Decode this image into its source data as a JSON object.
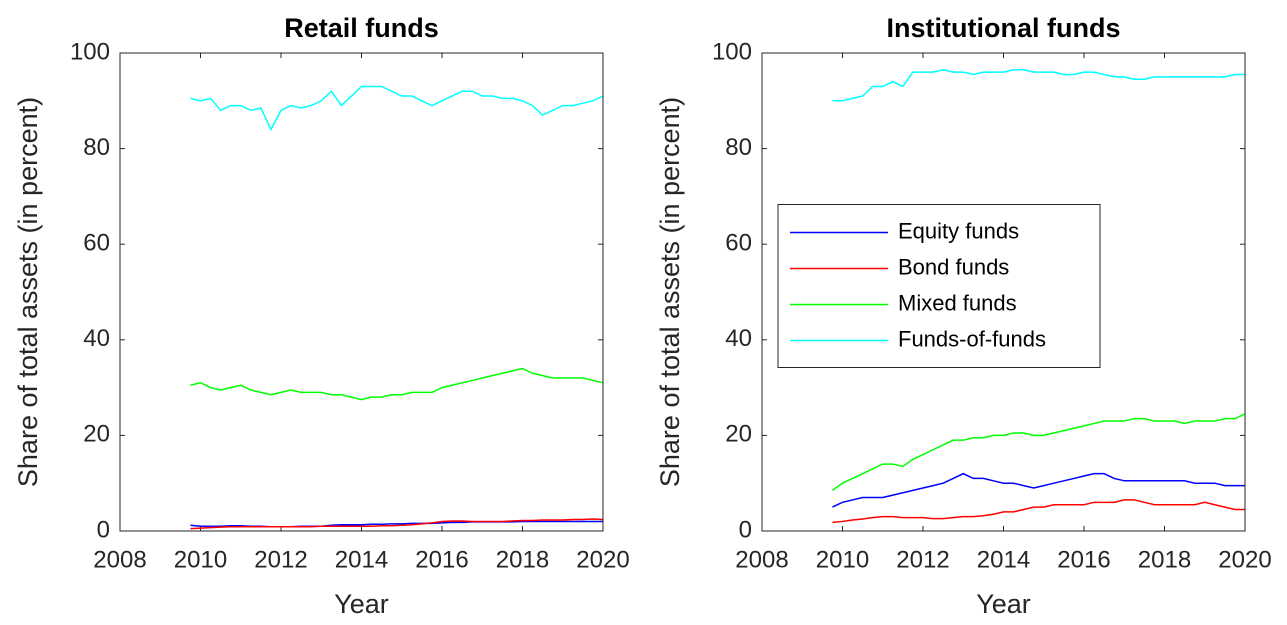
{
  "chart_data": [
    {
      "type": "line",
      "title": "Retail funds",
      "xlabel": "Year",
      "ylabel": "Share of total assets (in percent)",
      "x": [
        2009.75,
        2010,
        2010.25,
        2010.5,
        2010.75,
        2011,
        2011.25,
        2011.5,
        2011.75,
        2012,
        2012.25,
        2012.5,
        2012.75,
        2013,
        2013.25,
        2013.5,
        2013.75,
        2014,
        2014.25,
        2014.5,
        2014.75,
        2015,
        2015.25,
        2015.5,
        2015.75,
        2016,
        2016.25,
        2016.5,
        2016.75,
        2017,
        2017.25,
        2017.5,
        2017.75,
        2018,
        2018.25,
        2018.5,
        2018.75,
        2019,
        2019.25,
        2019.5,
        2019.75,
        2020
      ],
      "series": [
        {
          "color": "#0000ff",
          "values": [
            1.2,
            1,
            1,
            1,
            1.1,
            1.1,
            1,
            1,
            0.9,
            0.9,
            0.9,
            1,
            1,
            1,
            1.2,
            1.3,
            1.3,
            1.3,
            1.4,
            1.4,
            1.5,
            1.5,
            1.6,
            1.6,
            1.6,
            1.7,
            1.8,
            1.8,
            1.9,
            1.9,
            1.9,
            1.9,
            1.9,
            2,
            2,
            2,
            2,
            2,
            2,
            2,
            2,
            2
          ]
        },
        {
          "color": "#ff0000",
          "values": [
            0.5,
            0.6,
            0.7,
            0.8,
            0.9,
            0.9,
            0.9,
            0.9,
            0.9,
            0.9,
            0.9,
            0.9,
            0.9,
            1,
            1,
            1,
            1,
            1,
            1,
            1.1,
            1.1,
            1.2,
            1.3,
            1.5,
            1.7,
            2,
            2.1,
            2.1,
            2,
            2,
            2,
            2,
            2.1,
            2.2,
            2.2,
            2.3,
            2.3,
            2.3,
            2.4,
            2.4,
            2.5,
            2.4
          ]
        },
        {
          "color": "#00ff00",
          "values": [
            30.5,
            31,
            30,
            29.5,
            30,
            30.5,
            29.5,
            29,
            28.5,
            29,
            29.5,
            29,
            29,
            29,
            28.5,
            28.5,
            28,
            27.5,
            28,
            28,
            28.5,
            28.5,
            29,
            29,
            29,
            30,
            30.5,
            31,
            31.5,
            32,
            32.5,
            33,
            33.5,
            34,
            33,
            32.5,
            32,
            32,
            32,
            32,
            31.5,
            31
          ]
        },
        {
          "color": "#00ffff",
          "values": [
            90.5,
            90,
            90.5,
            88,
            89,
            89,
            88,
            88.5,
            84,
            88,
            89,
            88.5,
            89,
            90,
            92,
            89,
            91,
            93,
            93,
            93,
            92,
            91,
            91,
            90,
            89,
            90,
            91,
            92,
            92,
            91,
            91,
            90.5,
            90.5,
            90,
            89,
            87,
            88,
            89,
            89,
            89.5,
            90,
            91
          ]
        }
      ],
      "xlim": [
        2008,
        2020
      ],
      "xticks": [
        2008,
        2010,
        2012,
        2014,
        2016,
        2018,
        2020
      ],
      "ylim": [
        0,
        100
      ],
      "yticks": [
        0,
        20,
        40,
        60,
        80,
        100
      ],
      "grid": false
    },
    {
      "type": "line",
      "title": "Institutional funds",
      "xlabel": "Year",
      "ylabel": "Share of total assets (in percent)",
      "x": [
        2009.75,
        2010,
        2010.25,
        2010.5,
        2010.75,
        2011,
        2011.25,
        2011.5,
        2011.75,
        2012,
        2012.25,
        2012.5,
        2012.75,
        2013,
        2013.25,
        2013.5,
        2013.75,
        2014,
        2014.25,
        2014.5,
        2014.75,
        2015,
        2015.25,
        2015.5,
        2015.75,
        2016,
        2016.25,
        2016.5,
        2016.75,
        2017,
        2017.25,
        2017.5,
        2017.75,
        2018,
        2018.25,
        2018.5,
        2018.75,
        2019,
        2019.25,
        2019.5,
        2019.75,
        2020
      ],
      "series": [
        {
          "name": "Equity funds",
          "color": "#0000ff",
          "values": [
            5,
            6,
            6.5,
            7,
            7,
            7,
            7.5,
            8,
            8.5,
            9,
            9.5,
            10,
            11,
            12,
            11,
            11,
            10.5,
            10,
            10,
            9.5,
            9,
            9.5,
            10,
            10.5,
            11,
            11.5,
            12,
            12,
            11,
            10.5,
            10.5,
            10.5,
            10.5,
            10.5,
            10.5,
            10.5,
            10,
            10,
            10,
            9.5,
            9.5,
            9.5
          ]
        },
        {
          "name": "Bond funds",
          "color": "#ff0000",
          "values": [
            1.8,
            2,
            2.3,
            2.5,
            2.8,
            3,
            3,
            2.8,
            2.8,
            2.8,
            2.6,
            2.6,
            2.8,
            3,
            3,
            3.2,
            3.5,
            4,
            4,
            4.5,
            5,
            5,
            5.5,
            5.5,
            5.5,
            5.5,
            6,
            6,
            6,
            6.5,
            6.5,
            6,
            5.5,
            5.5,
            5.5,
            5.5,
            5.5,
            6,
            5.5,
            5,
            4.5,
            4.5
          ]
        },
        {
          "name": "Mixed funds",
          "color": "#00ff00",
          "values": [
            8.5,
            10,
            11,
            12,
            13,
            14,
            14,
            13.5,
            15,
            16,
            17,
            18,
            19,
            19,
            19.5,
            19.5,
            20,
            20,
            20.5,
            20.5,
            20,
            20,
            20.5,
            21,
            21.5,
            22,
            22.5,
            23,
            23,
            23,
            23.5,
            23.5,
            23,
            23,
            23,
            22.5,
            23,
            23,
            23,
            23.5,
            23.5,
            24.5
          ]
        },
        {
          "name": "Funds-of-funds",
          "color": "#00ffff",
          "values": [
            90,
            90,
            90.5,
            91,
            93,
            93,
            94,
            93,
            96,
            96,
            96,
            96.5,
            96,
            96,
            95.5,
            96,
            96,
            96,
            96.5,
            96.5,
            96,
            96,
            96,
            95.5,
            95.5,
            96,
            96,
            95.5,
            95,
            95,
            94.5,
            94.5,
            95,
            95,
            95,
            95,
            95,
            95,
            95,
            95,
            95.5,
            95.5
          ]
        }
      ],
      "xlim": [
        2008,
        2020
      ],
      "xticks": [
        2008,
        2010,
        2012,
        2014,
        2016,
        2018,
        2020
      ],
      "ylim": [
        0,
        100
      ],
      "yticks": [
        0,
        20,
        40,
        60,
        80,
        100
      ],
      "grid": false,
      "legend": "west"
    }
  ]
}
